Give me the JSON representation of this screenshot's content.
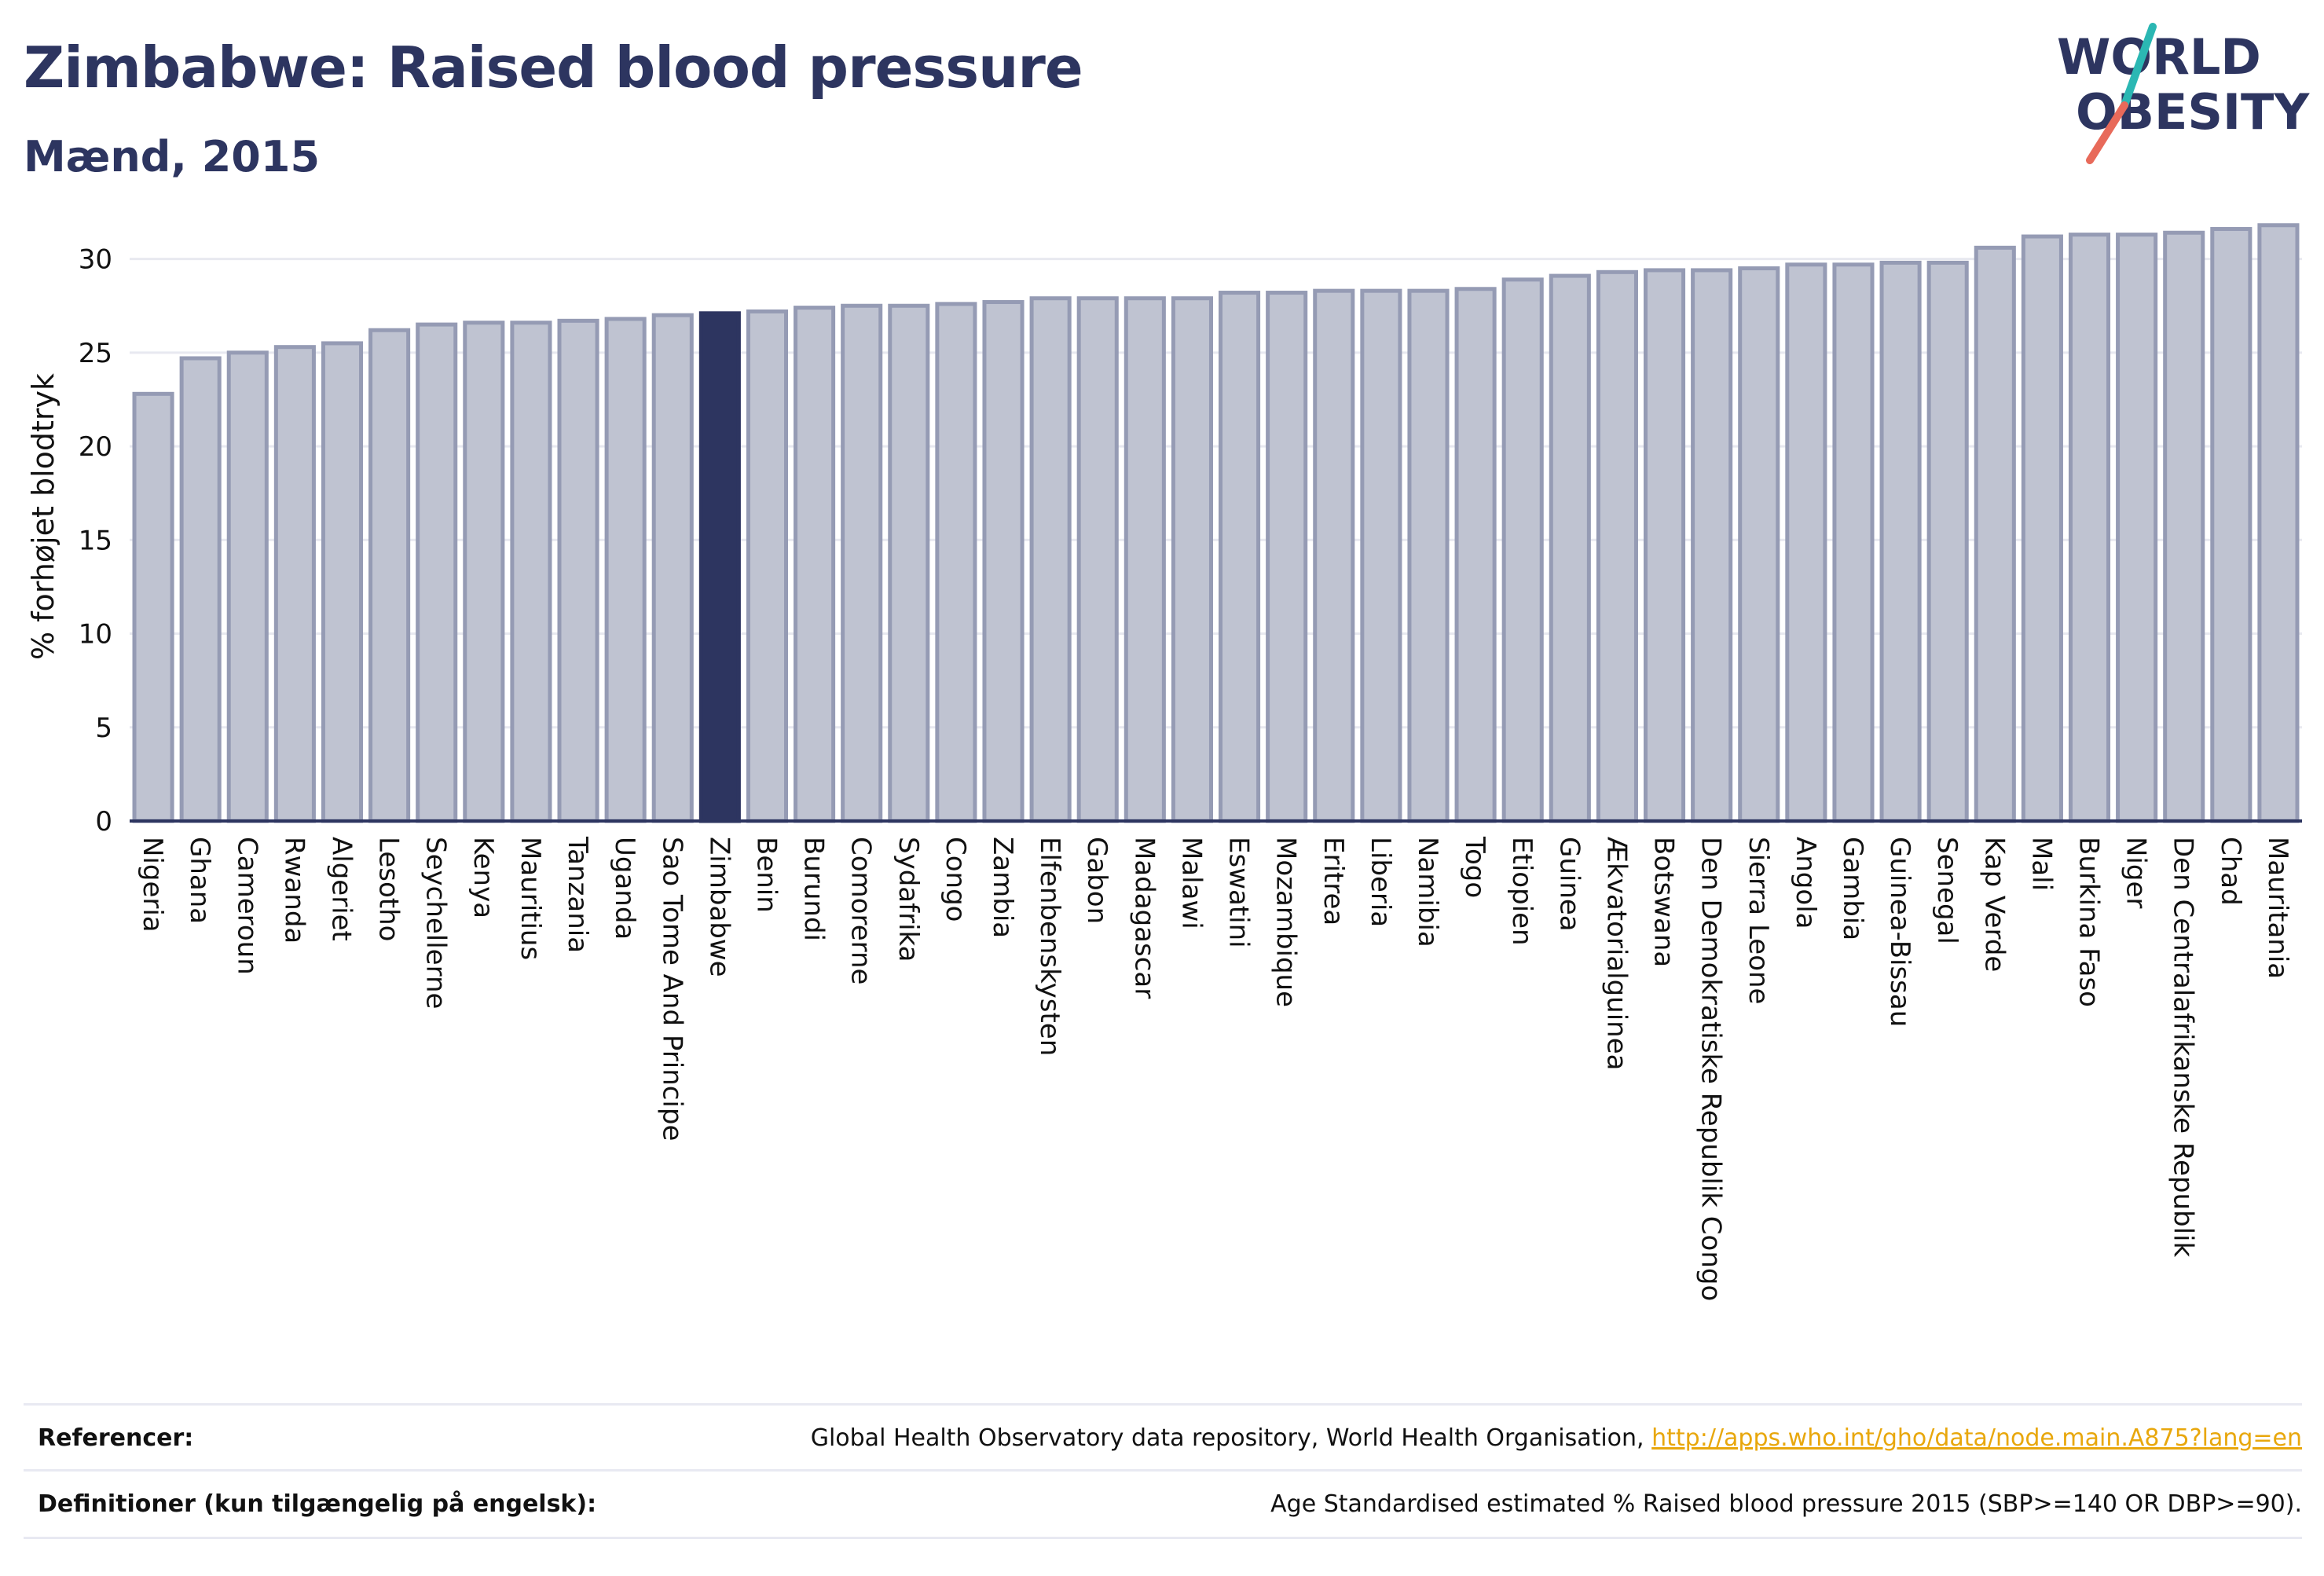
{
  "title": "Zimbabwe: Raised blood pressure",
  "subtitle": "Mænd, 2015",
  "logo": {
    "line1": "WORLD",
    "line2": "OBESITY",
    "accent_colors": [
      "#2bb7b3",
      "#e86a5a"
    ]
  },
  "colors": {
    "bar": "#bfc3d1",
    "bar_border": "#959bb4",
    "highlight": "#2d3560",
    "text": "#2d3560"
  },
  "chart_data": {
    "type": "bar",
    "ylabel": "% forhøjet blodtryk",
    "ylim": [
      0,
      32.5
    ],
    "yticks": [
      0,
      5,
      10,
      15,
      20,
      25,
      30
    ],
    "grid": true,
    "highlight": "Zimbabwe",
    "categories": [
      "Nigeria",
      "Ghana",
      "Cameroun",
      "Rwanda",
      "Algeriet",
      "Lesotho",
      "Seychellerne",
      "Kenya",
      "Mauritius",
      "Tanzania",
      "Uganda",
      "Sao Tome And Principe",
      "Zimbabwe",
      "Benin",
      "Burundi",
      "Comorerne",
      "Sydafrika",
      "Congo",
      "Zambia",
      "Elfenbenskysten",
      "Gabon",
      "Madagascar",
      "Malawi",
      "Eswatini",
      "Mozambique",
      "Eritrea",
      "Liberia",
      "Namibia",
      "Togo",
      "Etiopien",
      "Guinea",
      "Ækvatorialguinea",
      "Botswana",
      "Den Demokratiske Republik Congo",
      "Sierra Leone",
      "Angola",
      "Gambia",
      "Guinea-Bissau",
      "Senegal",
      "Kap Verde",
      "Mali",
      "Burkina Faso",
      "Niger",
      "Den Centralafrikanske Republik",
      "Chad",
      "Mauritania"
    ],
    "values": [
      22.8,
      24.7,
      25.0,
      25.3,
      25.5,
      26.2,
      26.5,
      26.6,
      26.6,
      26.7,
      26.8,
      27.0,
      27.1,
      27.2,
      27.4,
      27.5,
      27.5,
      27.6,
      27.7,
      27.9,
      27.9,
      27.9,
      27.9,
      28.2,
      28.2,
      28.3,
      28.3,
      28.3,
      28.4,
      28.9,
      29.1,
      29.3,
      29.4,
      29.4,
      29.5,
      29.7,
      29.7,
      29.8,
      29.8,
      30.6,
      31.2,
      31.3,
      31.3,
      31.4,
      31.6,
      31.8
    ]
  },
  "footer": {
    "references_label": "Referencer:",
    "references_text": "Global Health Observatory data repository, World Health Organisation,",
    "references_link": "http://apps.who.int/gho/data/node.main.A875?lang=en",
    "definitions_label": "Definitioner (kun tilgængelig på engelsk):",
    "definitions_text": "Age Standardised estimated % Raised blood pressure 2015 (SBP>=140 OR DBP>=90)."
  }
}
